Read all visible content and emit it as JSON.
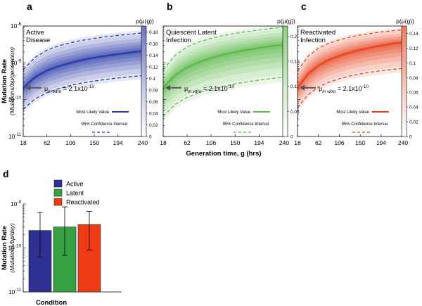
{
  "chart_data": [
    {
      "panel": "a",
      "type": "line",
      "label": "Active\nDisease",
      "color": "#2b3aa8",
      "y_scale": "log",
      "ylim": [
        1e-11,
        1e-08
      ],
      "xlim": [
        18,
        240
      ],
      "ylabel": "Mutation Rate",
      "ylabel_units": "(Mutations/bp/generation)",
      "y_ticks": [
        "10^-8",
        "10^-9",
        "10^-10",
        "10^-11"
      ],
      "x_ticks": [
        18,
        62,
        106,
        150,
        194,
        240
      ],
      "colorbar_label": "p(μ(g))",
      "colorbar_ticks": [
        "0.18",
        "0.16",
        "0.14",
        "0.12",
        "0.1",
        "0.08",
        "0.06",
        "0.04",
        "0.02",
        "0"
      ],
      "colorbar_max": 0.19,
      "annotation_prefix": "μ",
      "annotation_sub": "in vitro",
      "annotation_value": " = 2.1x10",
      "annotation_exp": "-10",
      "legend": [
        "Most Likely Value",
        "95% Confidence Interval"
      ],
      "series": [
        {
          "name": "Most Likely Value",
          "x": [
            18,
            40,
            62,
            84,
            106,
            128,
            150,
            172,
            194,
            216,
            240
          ],
          "y": [
            2.1e-10,
            4.1e-10,
            6.2e-10,
            8.1e-10,
            1e-09,
            1.2e-09,
            1.38e-09,
            1.55e-09,
            1.72e-09,
            1.9e-09,
            2.1e-09
          ]
        },
        {
          "name": "95% Confidence Interval (upper)",
          "x": [
            18,
            40,
            62,
            84,
            106,
            128,
            150,
            172,
            194,
            216,
            240
          ],
          "y": [
            6.5e-10,
            1.4e-09,
            2.2e-09,
            2.9e-09,
            3.5e-09,
            4.1e-09,
            4.6e-09,
            5.1e-09,
            5.6e-09,
            6e-09,
            6.5e-09
          ]
        },
        {
          "name": "95% Confidence Interval (lower)",
          "x": [
            18,
            40,
            62,
            84,
            106,
            128,
            150,
            172,
            194,
            216,
            240
          ],
          "y": [
            5.5e-11,
            1.05e-10,
            1.55e-10,
            2e-10,
            2.45e-10,
            2.85e-10,
            3.2e-10,
            3.55e-10,
            3.9e-10,
            4.2e-10,
            4.5e-10
          ]
        }
      ]
    },
    {
      "panel": "b",
      "type": "line",
      "label": "Quiescent Latent\nInfection",
      "color": "#5cb84a",
      "y_scale": "log",
      "ylim": [
        1e-11,
        1e-08
      ],
      "xlim": [
        18,
        240
      ],
      "x_ticks": [
        18,
        62,
        106,
        150,
        194,
        240
      ],
      "xlabel": "Generation time, g (hrs)",
      "colorbar_label": "p(μ(g))",
      "colorbar_ticks": [
        "0.2",
        "0.15",
        "0.1",
        "0.05",
        "0"
      ],
      "colorbar_max": 0.22,
      "annotation_prefix": "μ",
      "annotation_sub": "in vitro",
      "annotation_value": " = 2.1x10",
      "annotation_exp": "-10",
      "legend": [
        "Most Likely Value",
        "95% Confidence Interval"
      ],
      "series": [
        {
          "name": "Most Likely Value",
          "x": [
            18,
            40,
            62,
            84,
            106,
            128,
            150,
            172,
            194,
            216,
            240
          ],
          "y": [
            2.1e-10,
            4.6e-10,
            7.5e-10,
            1.05e-09,
            1.35e-09,
            1.65e-09,
            1.95e-09,
            2.25e-09,
            2.55e-09,
            2.85e-09,
            3.1e-09
          ]
        },
        {
          "name": "95% Confidence Interval (upper)",
          "x": [
            18,
            40,
            62,
            84,
            106,
            128,
            150,
            172,
            194,
            216,
            240
          ],
          "y": [
            6.5e-10,
            1.6e-09,
            2.7e-09,
            3.7e-09,
            4.6e-09,
            5.5e-09,
            6.3e-09,
            7.1e-09,
            7.8e-09,
            8.6e-09,
            9.3e-09
          ]
        },
        {
          "name": "95% Confidence Interval (lower)",
          "x": [
            18,
            40,
            62,
            84,
            106,
            128,
            150,
            172,
            194,
            216,
            240
          ],
          "y": [
            3.5e-11,
            7.5e-11,
            1.15e-10,
            1.55e-10,
            1.95e-10,
            2.3e-10,
            2.7e-10,
            3.05e-10,
            3.4e-10,
            3.75e-10,
            4.1e-10
          ]
        }
      ]
    },
    {
      "panel": "c",
      "type": "line",
      "label": "Reactivated\nInfection",
      "color": "#e8431c",
      "y_scale": "log",
      "ylim": [
        1e-11,
        1e-08
      ],
      "xlim": [
        18,
        240
      ],
      "x_ticks": [
        18,
        62,
        106,
        150,
        194,
        240
      ],
      "colorbar_label": "p(μ(g))",
      "colorbar_ticks": [
        "0.14",
        "0.12",
        "0.1",
        "0.08",
        "0.06",
        "0.04",
        "0.02",
        "0"
      ],
      "colorbar_max": 0.15,
      "annotation_prefix": "μ",
      "annotation_sub": "in vitro",
      "annotation_value": " = 2.1x10",
      "annotation_exp": "-10",
      "legend": [
        "Most Likely Value",
        "95% Confidence Interval"
      ],
      "series": [
        {
          "name": "Most Likely Value",
          "x": [
            18,
            40,
            62,
            84,
            106,
            128,
            150,
            172,
            194,
            216,
            240
          ],
          "y": [
            2.1e-10,
            5e-10,
            8.5e-10,
            1.2e-09,
            1.55e-09,
            1.9e-09,
            2.25e-09,
            2.6e-09,
            2.95e-09,
            3.3e-09,
            3.6e-09
          ]
        },
        {
          "name": "95% Confidence Interval (upper)",
          "x": [
            18,
            40,
            62,
            84,
            106,
            128,
            150,
            172,
            194,
            216,
            240
          ],
          "y": [
            6e-10,
            1.5e-09,
            2.5e-09,
            3.4e-09,
            4.2e-09,
            5e-09,
            5.7e-09,
            6.3e-09,
            6.9e-09,
            7.4e-09,
            7.9e-09
          ]
        },
        {
          "name": "95% Confidence Interval (lower)",
          "x": [
            18,
            40,
            62,
            84,
            106,
            128,
            150,
            172,
            194,
            216,
            240
          ],
          "y": [
            6e-11,
            1.35e-10,
            2.2e-10,
            3e-10,
            3.7e-10,
            4.4e-10,
            5e-10,
            5.6e-10,
            6.1e-10,
            6.6e-10,
            7.1e-10
          ]
        }
      ]
    },
    {
      "panel": "d",
      "type": "bar",
      "y_scale": "log",
      "ylim": [
        1e-11,
        1e-09
      ],
      "ylabel": "Mutation Rate",
      "ylabel_units": "(Mutations/bp/day)",
      "xlabel": "Condition",
      "y_ticks": [
        "10^-9",
        "10^-10",
        "10^-11"
      ],
      "categories": [
        "Active",
        "Latent",
        "Reactivated"
      ],
      "colors": [
        "#2e3192",
        "#37a043",
        "#ee3b16"
      ],
      "values": [
        2.5e-10,
        3e-10,
        3.4e-10
      ],
      "error_upper": [
        6.4e-10,
        8.6e-10,
        6.8e-10
      ],
      "error_lower": [
        6.2e-11,
        6.8e-11,
        9e-11
      ]
    }
  ]
}
